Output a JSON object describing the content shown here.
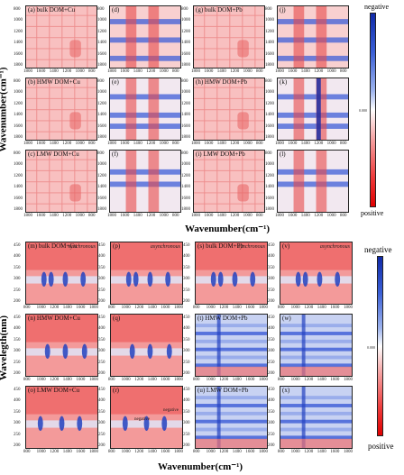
{
  "chart_data": [
    {
      "type": "heatmap",
      "description_group": "top",
      "xlabel": "Wavenumber(cm⁻¹)",
      "ylabel": "Wavenumber(cm⁻¹)",
      "x_ticks": [
        "1800",
        "1600",
        "1400",
        "1200",
        "1000",
        "800"
      ],
      "y_ticks": [
        "800",
        "1000",
        "1200",
        "1400",
        "1600",
        "1800"
      ],
      "panels": [
        {
          "id": "a",
          "label": "(a)",
          "subtitle": "bulk DOM+Cu"
        },
        {
          "id": "d",
          "label": "(d)",
          "subtitle": ""
        },
        {
          "id": "g",
          "label": "(g)",
          "subtitle": "bulk DOM+Pb"
        },
        {
          "id": "j",
          "label": "(j)",
          "subtitle": ""
        },
        {
          "id": "b",
          "label": "(b)",
          "subtitle": "HMW DOM+Cu"
        },
        {
          "id": "e",
          "label": "(e)",
          "subtitle": ""
        },
        {
          "id": "h",
          "label": "(h)",
          "subtitle": "HMW DOM+Pb"
        },
        {
          "id": "k",
          "label": "(k)",
          "subtitle": ""
        },
        {
          "id": "c",
          "label": "(c)",
          "subtitle": "LMW DOM+Cu"
        },
        {
          "id": "f",
          "label": "(f)",
          "subtitle": ""
        },
        {
          "id": "i",
          "label": "(i)",
          "subtitle": "LMW DOM+Pb"
        },
        {
          "id": "l",
          "label": "(l)",
          "subtitle": ""
        }
      ],
      "colorbar": {
        "top": "negative",
        "bottom": "positive",
        "mid": "0.000"
      }
    },
    {
      "type": "heatmap",
      "description_group": "bottom",
      "xlabel": "Wavenumber(cm⁻¹)",
      "ylabel": "Wavelegth(nm)",
      "x_ticks": [
        "800",
        "1000",
        "1200",
        "1400",
        "1600",
        "1800"
      ],
      "y_ticks": [
        "450",
        "400",
        "350",
        "300",
        "250",
        "200"
      ],
      "panels": [
        {
          "id": "m",
          "label": "(m)",
          "subtitle": "bulk DOM+Cu",
          "corner": "synchronous"
        },
        {
          "id": "p",
          "label": "(p)",
          "subtitle": "",
          "corner": "asynchronous"
        },
        {
          "id": "s",
          "label": "(s)",
          "subtitle": "bulk DOM+Pb",
          "corner": "synchronous"
        },
        {
          "id": "v",
          "label": "(v)",
          "subtitle": "",
          "corner": "asynchronous"
        },
        {
          "id": "n",
          "label": "(n)",
          "subtitle": "HMW DOM+Cu",
          "corner": ""
        },
        {
          "id": "q",
          "label": "(q)",
          "subtitle": "",
          "corner": ""
        },
        {
          "id": "t",
          "label": "(t)",
          "subtitle": "HMW DOM+Pb",
          "corner": ""
        },
        {
          "id": "w",
          "label": "(w)",
          "subtitle": "",
          "corner": ""
        },
        {
          "id": "o",
          "label": "(o)",
          "subtitle": "LMW DOM+Cu",
          "corner": ""
        },
        {
          "id": "r",
          "label": "(r)",
          "subtitle": "",
          "corner": "",
          "notes": [
            "negative",
            "negative"
          ]
        },
        {
          "id": "u",
          "label": "(u)",
          "subtitle": "LMW DOM+Pb",
          "corner": ""
        },
        {
          "id": "x",
          "label": "(x)",
          "subtitle": "",
          "corner": ""
        }
      ],
      "colorbar": {
        "top": "negative",
        "bottom": "positive",
        "mid": "0.000"
      }
    }
  ]
}
